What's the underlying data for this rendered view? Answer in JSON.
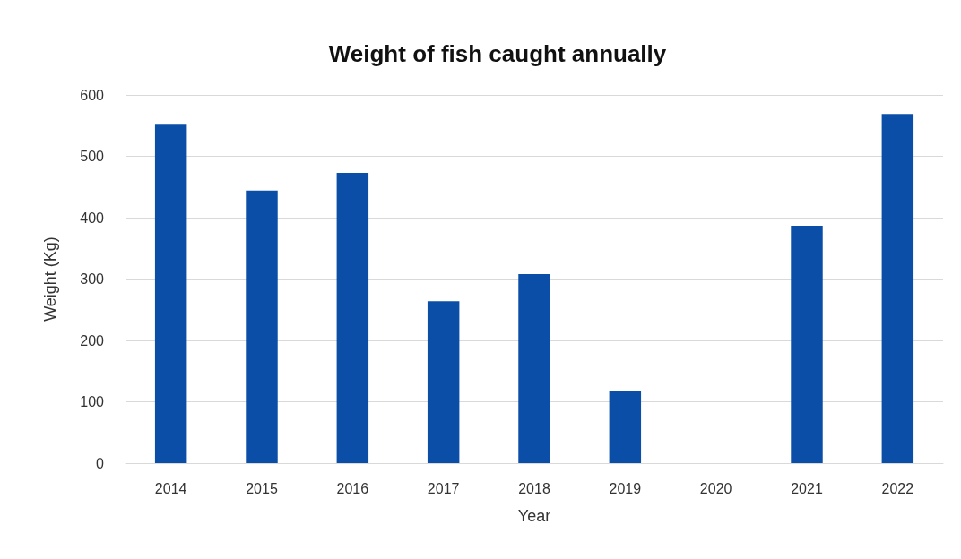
{
  "chart_data": {
    "type": "bar",
    "title": "Weight of fish caught annually",
    "xlabel": "Year",
    "ylabel": "Weight (Kg)",
    "categories": [
      "2014",
      "2015",
      "2016",
      "2017",
      "2018",
      "2019",
      "2020",
      "2021",
      "2022"
    ],
    "values": [
      553,
      444,
      473,
      264,
      308,
      117,
      0,
      387,
      569
    ],
    "color": "#0b4ea8",
    "ylim": [
      0,
      600
    ],
    "yticks": [
      0,
      100,
      200,
      300,
      400,
      500,
      600
    ],
    "grid": "y"
  }
}
